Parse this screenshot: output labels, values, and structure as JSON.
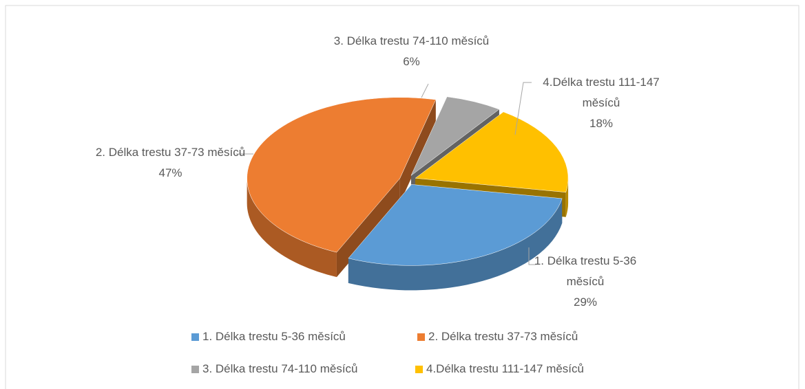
{
  "chart_data": {
    "type": "pie3d",
    "categories": [
      "1. Délka trestu 5-36 měsíců",
      "2. Délka trestu 37-73 měsíců",
      "3. Délka trestu 74-110 měsíců",
      "4.Délka trestu 111-147 měsíců"
    ],
    "values": [
      29,
      47,
      6,
      18
    ],
    "value_labels": [
      "29%",
      "47%",
      "6%",
      "18%"
    ],
    "colors": [
      "#5b9bd5",
      "#ed7d31",
      "#a5a5a5",
      "#ffc000"
    ],
    "legend": "bottom"
  }
}
